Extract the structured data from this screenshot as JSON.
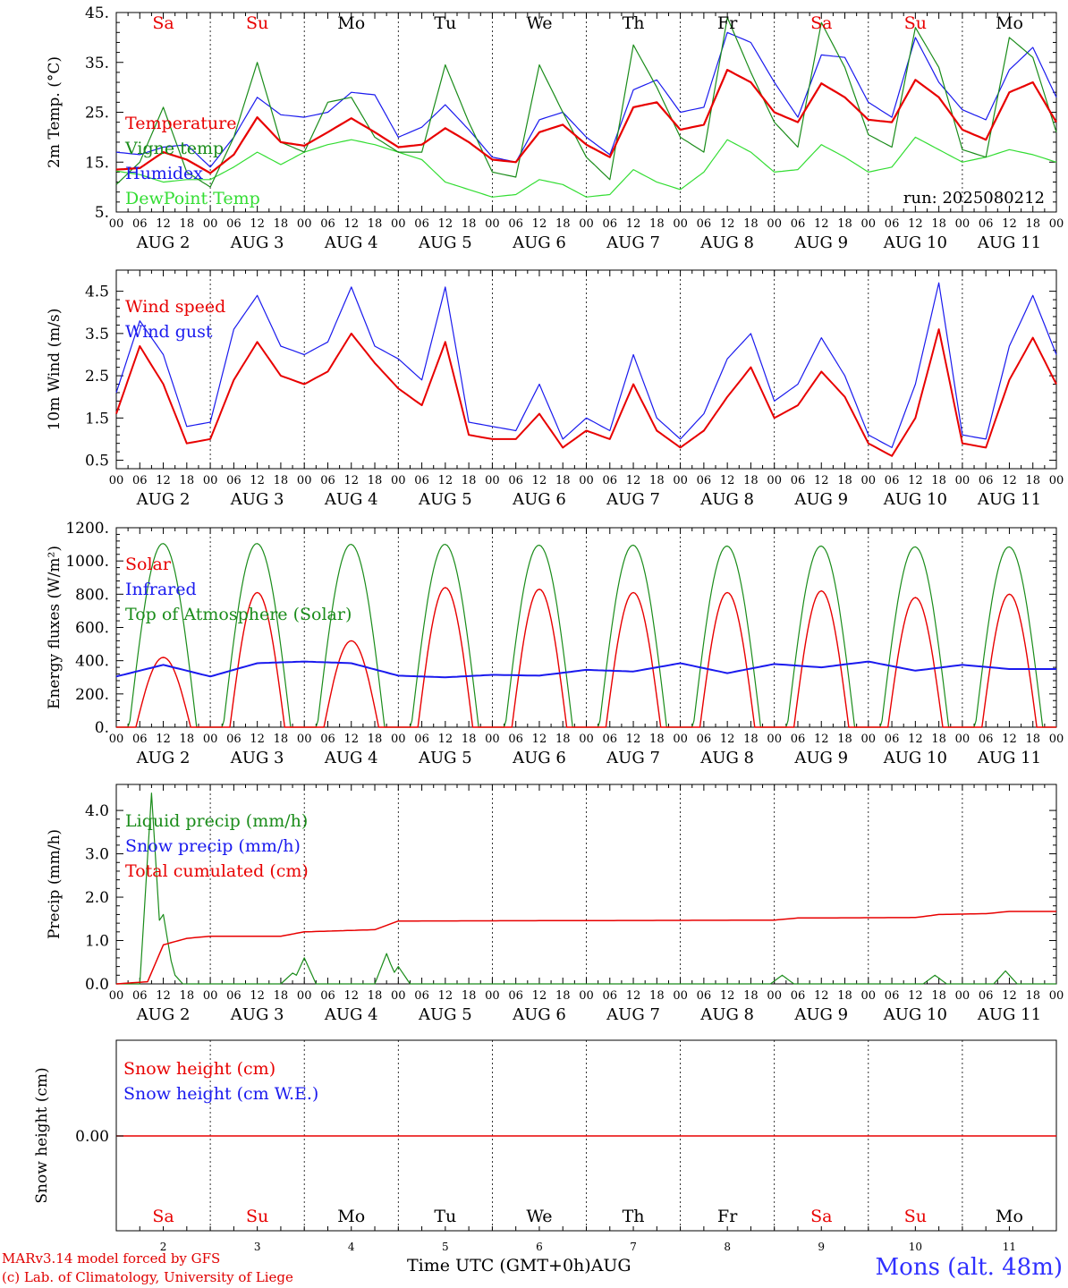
{
  "colors": {
    "red": "#e80000",
    "green": "#1a8c1a",
    "blue": "#1a1aee",
    "lightgreen": "#33dd33",
    "weekend": "#e80000",
    "weekday": "#000000"
  },
  "days": [
    {
      "label": "Sa",
      "date": "2",
      "weekend": true
    },
    {
      "label": "Su",
      "date": "3",
      "weekend": true
    },
    {
      "label": "Mo",
      "date": "4",
      "weekend": false
    },
    {
      "label": "Tu",
      "date": "5",
      "weekend": false
    },
    {
      "label": "We",
      "date": "6",
      "weekend": false
    },
    {
      "label": "Th",
      "date": "7",
      "weekend": false
    },
    {
      "label": "Fr",
      "date": "8",
      "weekend": false
    },
    {
      "label": "Sa",
      "date": "9",
      "weekend": true
    },
    {
      "label": "Su",
      "date": "10",
      "weekend": true
    },
    {
      "label": "Mo",
      "date": "11",
      "weekend": false
    }
  ],
  "month_label": "AUG",
  "hour_ticks": [
    "00",
    "06",
    "12",
    "18"
  ],
  "final_hour_tick": "00",
  "footer": {
    "credit_line1": "MARv3.14 model forced by GFS",
    "credit_line2": "(c) Lab. of Climatology, University of Liege",
    "x_title": "Time UTC (GMT+0h)AUG",
    "station": "Mons (alt. 48m)"
  },
  "chart_data": [
    {
      "type": "line",
      "ylabel": "2m Temp. (°C)",
      "ylim": [
        5,
        45
      ],
      "yticks": [
        "5.",
        "15.",
        "25.",
        "35.",
        "45."
      ],
      "ytick_values": [
        5,
        15,
        25,
        35,
        45
      ],
      "annotation": "run: 2025080212",
      "legend": [
        "Temperature",
        "Vigne temp",
        "Humidex",
        "DewPoint Temp"
      ],
      "x_hours": [
        0,
        6,
        12,
        18,
        24,
        30,
        36,
        42,
        48,
        54,
        60,
        66,
        72,
        78,
        84,
        90,
        96,
        102,
        108,
        114,
        120,
        126,
        132,
        138,
        144,
        150,
        156,
        162,
        168,
        174,
        180,
        186,
        192,
        198,
        204,
        210,
        216,
        222,
        228,
        234,
        240
      ],
      "series": [
        {
          "name": "Temperature",
          "color": "red",
          "values": [
            13.5,
            13.8,
            17.0,
            15.5,
            12.8,
            16.5,
            24.0,
            19.0,
            18.3,
            21.0,
            23.8,
            21.0,
            18.0,
            18.5,
            21.8,
            19.0,
            15.5,
            15.0,
            21.0,
            22.5,
            18.5,
            16.0,
            26.0,
            27.0,
            21.5,
            22.5,
            33.5,
            31.0,
            25.0,
            23.0,
            30.8,
            28.0,
            23.5,
            23.0,
            31.5,
            28.0,
            21.5,
            19.5,
            29.0,
            31.0,
            23.0
          ]
        },
        {
          "name": "Vigne temp",
          "color": "green",
          "values": [
            10.5,
            15.0,
            26.0,
            13.0,
            10.0,
            20.0,
            35.0,
            19.0,
            17.0,
            27.0,
            28.0,
            20.0,
            17.0,
            17.0,
            34.5,
            23.0,
            13.0,
            12.0,
            34.5,
            25.0,
            16.0,
            11.5,
            38.5,
            30.0,
            20.0,
            17.0,
            44.0,
            33.0,
            23.0,
            18.0,
            43.0,
            34.0,
            20.5,
            18.0,
            42.0,
            34.0,
            17.5,
            16.0,
            40.0,
            36.0,
            21.0
          ]
        },
        {
          "name": "Humidex",
          "color": "blue",
          "values": [
            17.0,
            16.5,
            18.0,
            18.5,
            14.0,
            20.0,
            28.0,
            24.5,
            24.0,
            25.0,
            29.0,
            28.5,
            20.0,
            22.0,
            26.5,
            21.5,
            16.0,
            15.0,
            23.5,
            25.0,
            20.0,
            16.5,
            29.5,
            31.5,
            25.0,
            26.0,
            41.0,
            39.0,
            31.0,
            24.0,
            36.5,
            36.0,
            27.0,
            24.0,
            40.0,
            31.0,
            25.5,
            23.5,
            33.5,
            38.0,
            28.0
          ]
        },
        {
          "name": "DewPoint Temp",
          "color": "lightgreen",
          "values": [
            13.2,
            12.5,
            11.0,
            11.5,
            11.5,
            14.0,
            17.0,
            14.5,
            17.0,
            18.5,
            19.5,
            18.5,
            17.0,
            15.5,
            11.0,
            9.5,
            8.0,
            8.5,
            11.5,
            10.5,
            8.0,
            8.5,
            13.5,
            11.0,
            9.5,
            13.0,
            19.5,
            17.0,
            13.0,
            13.5,
            18.5,
            16.0,
            13.0,
            14.0,
            20.0,
            17.5,
            15.0,
            16.0,
            17.5,
            16.5,
            15.0
          ]
        }
      ]
    },
    {
      "type": "line",
      "ylabel": "10m Wind (m/s)",
      "ylim": [
        0.3,
        5.0
      ],
      "yticks": [
        "0.5",
        "1.5",
        "2.5",
        "3.5",
        "4.5"
      ],
      "ytick_values": [
        0.5,
        1.5,
        2.5,
        3.5,
        4.5
      ],
      "legend": [
        "Wind speed",
        "Wind gust"
      ],
      "x_hours": [
        0,
        6,
        12,
        18,
        24,
        30,
        36,
        42,
        48,
        54,
        60,
        66,
        72,
        78,
        84,
        90,
        96,
        102,
        108,
        114,
        120,
        126,
        132,
        138,
        144,
        150,
        156,
        162,
        168,
        174,
        180,
        186,
        192,
        198,
        204,
        210,
        216,
        222,
        228,
        234,
        240
      ],
      "series": [
        {
          "name": "Wind speed",
          "color": "red",
          "values": [
            1.6,
            3.2,
            2.3,
            0.9,
            1.0,
            2.4,
            3.3,
            2.5,
            2.3,
            2.6,
            3.5,
            2.8,
            2.2,
            1.8,
            3.3,
            1.1,
            1.0,
            1.0,
            1.6,
            0.8,
            1.2,
            1.0,
            2.3,
            1.2,
            0.8,
            1.2,
            2.0,
            2.7,
            1.5,
            1.8,
            2.6,
            2.0,
            0.9,
            0.6,
            1.5,
            3.6,
            0.9,
            0.8,
            2.4,
            3.4,
            2.3
          ]
        },
        {
          "name": "Wind gust",
          "color": "blue",
          "values": [
            2.1,
            3.8,
            3.0,
            1.3,
            1.4,
            3.6,
            4.4,
            3.2,
            3.0,
            3.3,
            4.6,
            3.2,
            2.9,
            2.4,
            4.6,
            1.4,
            1.3,
            1.2,
            2.3,
            1.0,
            1.5,
            1.2,
            3.0,
            1.5,
            1.0,
            1.6,
            2.9,
            3.5,
            1.9,
            2.3,
            3.4,
            2.5,
            1.1,
            0.8,
            2.3,
            4.7,
            1.1,
            1.0,
            3.2,
            4.4,
            3.0
          ]
        }
      ]
    },
    {
      "type": "line",
      "ylabel": "Energy fluxes (W/m²)",
      "ylim": [
        0,
        1200
      ],
      "yticks": [
        "0.",
        "200.",
        "400.",
        "600.",
        "800.",
        "1000.",
        "1200."
      ],
      "ytick_values": [
        0,
        200,
        400,
        600,
        800,
        1000,
        1200
      ],
      "legend": [
        "Solar",
        "Infrared",
        "Top of Atmosphere (Solar)"
      ],
      "solar_peaks": [
        420,
        810,
        520,
        840,
        830,
        810,
        810,
        820,
        780,
        800
      ],
      "toa_peaks": [
        1105,
        1105,
        1100,
        1100,
        1095,
        1095,
        1090,
        1090,
        1085,
        1085
      ],
      "infrared": [
        305,
        375,
        305,
        385,
        395,
        385,
        310,
        300,
        315,
        310,
        345,
        335,
        385,
        325,
        380,
        360,
        395,
        340,
        375,
        350
      ],
      "series_colors": {
        "Solar": "red",
        "Infrared": "blue",
        "Top of Atmosphere (Solar)": "green"
      }
    },
    {
      "type": "line",
      "ylabel": "Precip (mm/h)",
      "ylim": [
        0,
        4.6
      ],
      "yticks": [
        "0.0",
        "1.0",
        "2.0",
        "3.0",
        "4.0"
      ],
      "ytick_values": [
        0,
        1,
        2,
        3,
        4
      ],
      "legend": [
        "Liquid precip (mm/h)",
        "Snow precip (mm/h)",
        "Total cumulated (cm)"
      ],
      "liquid_peaks": [
        [
          9,
          4.4
        ],
        [
          12,
          1.6
        ],
        [
          14,
          0.3
        ],
        [
          45,
          0.25
        ],
        [
          48,
          0.6
        ],
        [
          69,
          0.7
        ],
        [
          72,
          0.4
        ],
        [
          170,
          0.2
        ],
        [
          209,
          0.2
        ],
        [
          227,
          0.3
        ]
      ],
      "total_cumulated": [
        [
          0,
          0.0
        ],
        [
          8,
          0.05
        ],
        [
          12,
          0.9
        ],
        [
          18,
          1.05
        ],
        [
          24,
          1.1
        ],
        [
          42,
          1.1
        ],
        [
          48,
          1.2
        ],
        [
          66,
          1.25
        ],
        [
          72,
          1.45
        ],
        [
          168,
          1.47
        ],
        [
          174,
          1.52
        ],
        [
          204,
          1.53
        ],
        [
          210,
          1.6
        ],
        [
          222,
          1.62
        ],
        [
          228,
          1.67
        ],
        [
          252,
          1.67
        ]
      ],
      "series_colors": {
        "Liquid precip (mm/h)": "green",
        "Snow precip (mm/h)": "blue",
        "Total cumulated (cm)": "red"
      }
    },
    {
      "type": "line",
      "ylabel": "Snow height (cm)",
      "yticks": [
        "0.00"
      ],
      "legend": [
        "Snow height (cm)",
        "Snow height (cm W.E.)"
      ],
      "snow_height_cm": 0.0,
      "series_colors": {
        "Snow height (cm)": "red",
        "Snow height (cm W.E.)": "blue"
      }
    }
  ]
}
